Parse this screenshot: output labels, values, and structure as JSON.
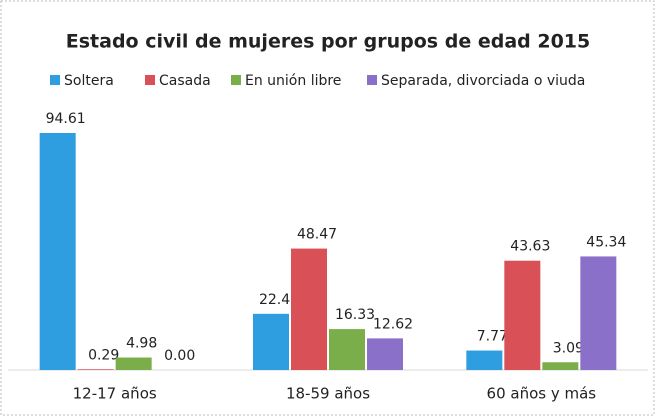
{
  "chart_data": {
    "type": "bar",
    "title": "Estado civil de mujeres por grupos de edad 2015",
    "categories": [
      "12-17 años",
      "18-59 años",
      "60 años y más"
    ],
    "series": [
      {
        "name": "Soltera",
        "color": "#2f9ee0",
        "values": [
          94.61,
          22.43,
          7.77
        ],
        "value_labels": [
          "94.61",
          "22.43",
          "7.77"
        ]
      },
      {
        "name": "Casada",
        "color": "#d95056",
        "values": [
          0.29,
          48.47,
          43.63
        ],
        "value_labels": [
          "0.29",
          "48.47",
          "43.63"
        ]
      },
      {
        "name": "En unión libre",
        "color": "#7aae4a",
        "values": [
          4.98,
          16.33,
          3.09
        ],
        "value_labels": [
          "4.98",
          "16.33",
          "3.09"
        ]
      },
      {
        "name": "Separada, divorciada o viuda",
        "color": "#8a70c8",
        "values": [
          0,
          12.62,
          45.34
        ],
        "value_labels": [
          "0.00",
          "12.62",
          "45.34"
        ]
      }
    ],
    "legend": "top"
  }
}
